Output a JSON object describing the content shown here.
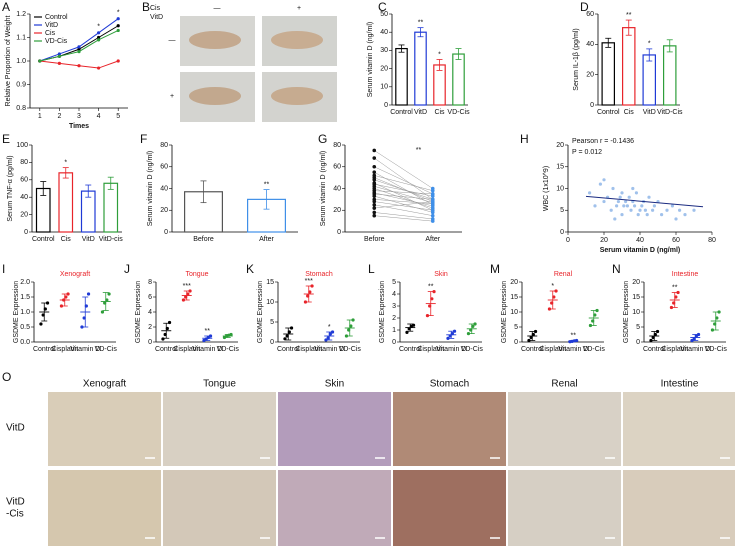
{
  "panels": [
    "A",
    "B",
    "C",
    "D",
    "E",
    "F",
    "G",
    "H",
    "I",
    "J",
    "K",
    "L",
    "M",
    "N",
    "O"
  ],
  "photos_b": {
    "cis": "Cis",
    "vitd": "VitD",
    "minus_col": "—",
    "plus_col": "+",
    "minus_row": "—",
    "plus_row": "+"
  },
  "photos_o": {
    "columns": [
      "Xenograft",
      "Tongue",
      "Skin",
      "Stomach",
      "Renal",
      "Intestine"
    ],
    "rows": [
      "VitD",
      "VitD",
      "-Cis"
    ]
  },
  "chart_data": [
    {
      "type": "line",
      "ylabel": "Relative Proportion of Weight",
      "xlabel": "Times",
      "x": [
        1,
        2,
        3,
        4,
        5
      ],
      "xlim": [
        0.5,
        5.5
      ],
      "xticks": [
        1,
        2,
        3,
        4,
        5
      ],
      "ylim": [
        0.8,
        1.2
      ],
      "yticks": [
        0.8,
        0.9,
        {
          "value": 1,
          "label": "1.0"
        },
        1.1,
        1.2
      ],
      "series": [
        {
          "name": "Control",
          "color": "#000000",
          "values": [
            1,
            1.02,
            1.05,
            1.1,
            1.15
          ]
        },
        {
          "name": "VitD",
          "color": "#1f3ad6",
          "values": [
            1,
            1.03,
            1.06,
            1.12,
            1.18
          ]
        },
        {
          "name": "Cis",
          "color": "#e8242a",
          "values": [
            1,
            0.99,
            0.98,
            0.97,
            1.0
          ]
        },
        {
          "name": "VD-Cis",
          "color": "#2e9e3a",
          "values": [
            1,
            1.02,
            1.04,
            1.09,
            1.13
          ]
        }
      ],
      "stars": [
        null,
        null,
        null,
        "*",
        "*"
      ]
    },
    {
      "type": "bar",
      "ylabel": "Serum vitamin D (ng/ml)",
      "categories": [
        "Control",
        "VitD",
        "Cis",
        "VD-Cis"
      ],
      "values": [
        31,
        40,
        22,
        28
      ],
      "errors": [
        2,
        2.5,
        3,
        3
      ],
      "colors": [
        "#000000",
        "#1f3ad6",
        "#e8242a",
        "#2e9e3a"
      ],
      "ylim": [
        0,
        50
      ],
      "yticks": [
        0,
        10,
        20,
        30,
        40,
        50
      ],
      "stars": [
        null,
        "**",
        "*",
        null
      ]
    },
    {
      "type": "bar",
      "ylabel": "Serum IL-1β (pg/ml)",
      "categories": [
        "Control",
        "Cis",
        "VitD",
        "VitD-Cis"
      ],
      "values": [
        41,
        51,
        33,
        39
      ],
      "errors": [
        3,
        5,
        4,
        4
      ],
      "colors": [
        "#000000",
        "#e8242a",
        "#1f3ad6",
        "#2e9e3a"
      ],
      "ylim": [
        0,
        60
      ],
      "yticks": [
        0,
        20,
        40,
        60
      ],
      "stars": [
        null,
        "**",
        "*",
        null
      ]
    },
    {
      "type": "bar",
      "ylabel": "Serum TNF-α (pg/ml)",
      "categories": [
        "Control",
        "Cis",
        "VitD",
        "VitD-cis"
      ],
      "values": [
        50,
        68,
        47,
        56
      ],
      "errors": [
        8,
        6,
        7,
        7
      ],
      "colors": [
        "#000000",
        "#e8242a",
        "#1f3ad6",
        "#2e9e3a"
      ],
      "ylim": [
        0,
        100
      ],
      "yticks": [
        0,
        20,
        40,
        60,
        80,
        100
      ],
      "stars": [
        null,
        "*",
        null,
        null
      ]
    },
    {
      "type": "bar",
      "ylabel": "Serum vitamin D (ng/ml)",
      "categories": [
        "Before",
        "After"
      ],
      "values": [
        37,
        30
      ],
      "errors": [
        10,
        9
      ],
      "colors": [
        "#555555",
        "#3f8fe8"
      ],
      "ylim": [
        0,
        80
      ],
      "yticks": [
        0,
        20,
        40,
        60,
        80
      ],
      "stars": [
        null,
        "**"
      ]
    },
    {
      "type": "paired",
      "ylabel": "Serum vitamin D (ng/ml)",
      "categories": [
        "Before",
        "After"
      ],
      "ylim": [
        0,
        80
      ],
      "yticks": [
        0,
        20,
        40,
        60,
        80
      ],
      "stars": "**",
      "before": [
        75,
        68,
        60,
        55,
        52,
        50,
        48,
        45,
        44,
        42,
        40,
        38,
        36,
        35,
        33,
        30,
        28,
        25,
        22,
        18,
        15
      ],
      "after": [
        40,
        30,
        35,
        25,
        38,
        28,
        30,
        20,
        33,
        27,
        22,
        35,
        24,
        30,
        18,
        26,
        20,
        15,
        28,
        12,
        10
      ]
    },
    {
      "type": "scatter",
      "ylabel": "WBC (1x10^9)",
      "xlabel": "Serum vitamin D (ng/ml)",
      "annotations": [
        "Pearson r = -0.1436",
        "P = 0.012"
      ],
      "xlim": [
        0,
        80
      ],
      "xticks": [
        0,
        20,
        40,
        60,
        80
      ],
      "ylim": [
        0,
        20
      ],
      "yticks": [
        0,
        5,
        10,
        15,
        20
      ],
      "color": "#8fb6e8",
      "x": [
        12,
        15,
        18,
        20,
        22,
        24,
        25,
        27,
        28,
        30,
        30,
        32,
        33,
        34,
        35,
        36,
        37,
        38,
        40,
        41,
        42,
        44,
        45,
        47,
        48,
        50,
        52,
        55,
        58,
        60,
        62,
        65,
        70,
        20,
        26,
        31,
        36,
        43,
        29,
        39
      ],
      "y": [
        9,
        6,
        11,
        7,
        8,
        5,
        10,
        6,
        7,
        9,
        4,
        7,
        6,
        8,
        5,
        7,
        6,
        9,
        5,
        6,
        7,
        4,
        8,
        5,
        6,
        7,
        4,
        5,
        6,
        3,
        5,
        4,
        5,
        12,
        3,
        6,
        10,
        5,
        8,
        4
      ],
      "trend": {
        "x": [
          10,
          75
        ],
        "y": [
          8.2,
          5.8
        ]
      }
    },
    {
      "type": "strip",
      "title": "Xenograft",
      "title_color": "#e8242a",
      "ylabel": "GSDME Expression",
      "categories": [
        "Control",
        "Cisplatin",
        "Vitamin D",
        "VD-Cis"
      ],
      "colors": [
        "#000000",
        "#e8242a",
        "#1f3ad6",
        "#2e9e3a"
      ],
      "ylim": [
        0,
        2
      ],
      "yticks": [
        {
          "value": 0,
          "label": "0.0"
        },
        0.5,
        {
          "value": 1,
          "label": "1.0"
        },
        1.5,
        {
          "value": 2,
          "label": "2.0"
        }
      ],
      "values": [
        1.0,
        1.4,
        1.0,
        1.35
      ],
      "errors": [
        0.3,
        0.2,
        0.5,
        0.3
      ],
      "points": [
        [
          0.6,
          0.9,
          1.1,
          1.3
        ],
        [
          1.2,
          1.4,
          1.5,
          1.6
        ],
        [
          0.5,
          0.8,
          1.2,
          1.6
        ],
        [
          1.0,
          1.3,
          1.4,
          1.6
        ]
      ],
      "stars": [
        null,
        null,
        null,
        null
      ]
    },
    {
      "type": "strip",
      "title": "Tongue",
      "title_color": "#e8242a",
      "ylabel": "GSDME Expression",
      "categories": [
        "Control",
        "Cisplatin",
        "Vitamin D",
        "VD-Cis"
      ],
      "colors": [
        "#000000",
        "#e8242a",
        "#1f3ad6",
        "#2e9e3a"
      ],
      "ylim": [
        0,
        8
      ],
      "yticks": [
        0,
        2,
        4,
        6,
        8
      ],
      "values": [
        1.5,
        6.2,
        0.5,
        0.8
      ],
      "errors": [
        1,
        0.6,
        0.3,
        0.2
      ],
      "points": [
        [
          0.4,
          1.0,
          1.8,
          2.6
        ],
        [
          5.6,
          6.0,
          6.4,
          6.8
        ],
        [
          0.2,
          0.4,
          0.6,
          0.8
        ],
        [
          0.6,
          0.8,
          0.9,
          1.0
        ]
      ],
      "stars": [
        null,
        "***",
        "**",
        null
      ]
    },
    {
      "type": "strip",
      "title": "Stomach",
      "title_color": "#e8242a",
      "ylabel": "GSDME Expression",
      "categories": [
        "Control",
        "Cisplatin",
        "Vitamin D",
        "VD-Cis"
      ],
      "colors": [
        "#000000",
        "#e8242a",
        "#1f3ad6",
        "#2e9e3a"
      ],
      "ylim": [
        0,
        15
      ],
      "yticks": [
        0,
        5,
        10,
        15
      ],
      "values": [
        2,
        12,
        1.5,
        3.5
      ],
      "errors": [
        1.5,
        2,
        1,
        2
      ],
      "points": [
        [
          0.8,
          1.5,
          2.5,
          3.5
        ],
        [
          10,
          11.5,
          12.5,
          14
        ],
        [
          0.5,
          1,
          2,
          2.5
        ],
        [
          1.5,
          3,
          4,
          5.5
        ]
      ],
      "stars": [
        null,
        "***",
        "*",
        null
      ]
    },
    {
      "type": "strip",
      "title": "Skin",
      "title_color": "#e8242a",
      "ylabel": "GSDME Expression",
      "categories": [
        "Control",
        "Cisplatin",
        "Vitamin D",
        "VD-Cis"
      ],
      "colors": [
        "#000000",
        "#e8242a",
        "#1f3ad6",
        "#2e9e3a"
      ],
      "ylim": [
        0,
        5
      ],
      "yticks": [
        0,
        1,
        2,
        3,
        4,
        5
      ],
      "values": [
        1.2,
        3.2,
        0.6,
        1.1
      ],
      "errors": [
        0.3,
        1,
        0.3,
        0.4
      ],
      "points": [
        [
          0.8,
          1.1,
          1.3,
          1.4
        ],
        [
          2.2,
          3,
          3.6,
          4.2
        ],
        [
          0.3,
          0.5,
          0.7,
          0.9
        ],
        [
          0.7,
          1,
          1.3,
          1.5
        ]
      ],
      "stars": [
        null,
        "**",
        null,
        null
      ]
    },
    {
      "type": "strip",
      "title": "Renal",
      "title_color": "#e8242a",
      "ylabel": "GSDME Expression",
      "categories": [
        "Control",
        "Cisplatin",
        "Vitamin D",
        "VD-Cis"
      ],
      "colors": [
        "#000000",
        "#e8242a",
        "#1f3ad6",
        "#2e9e3a"
      ],
      "ylim": [
        0,
        20
      ],
      "yticks": [
        0,
        5,
        10,
        15,
        20
      ],
      "values": [
        2,
        14,
        0.3,
        8
      ],
      "errors": [
        1.5,
        3,
        0.2,
        2.5
      ],
      "points": [
        [
          0.5,
          1.5,
          2.5,
          3.5
        ],
        [
          11,
          13,
          15,
          17
        ],
        [
          0.1,
          0.2,
          0.4,
          0.5
        ],
        [
          5.5,
          7,
          9,
          10.5
        ]
      ],
      "stars": [
        null,
        "*",
        "**",
        null
      ]
    },
    {
      "type": "strip",
      "title": "Intestine",
      "title_color": "#e8242a",
      "ylabel": "GSDME Expression",
      "categories": [
        "Control",
        "Cisplatin",
        "Vitamin D",
        "VD-Cis"
      ],
      "colors": [
        "#000000",
        "#e8242a",
        "#1f3ad6",
        "#2e9e3a"
      ],
      "ylim": [
        0,
        20
      ],
      "yticks": [
        0,
        5,
        10,
        15,
        20
      ],
      "values": [
        2,
        14,
        1.5,
        7
      ],
      "errors": [
        1.5,
        2.5,
        1,
        3
      ],
      "points": [
        [
          0.5,
          1.5,
          2.5,
          3.5
        ],
        [
          11.5,
          13,
          15,
          16.5
        ],
        [
          0.5,
          1,
          2,
          2.5
        ],
        [
          4,
          6,
          8,
          10
        ]
      ],
      "stars": [
        null,
        "**",
        null,
        null
      ]
    }
  ]
}
